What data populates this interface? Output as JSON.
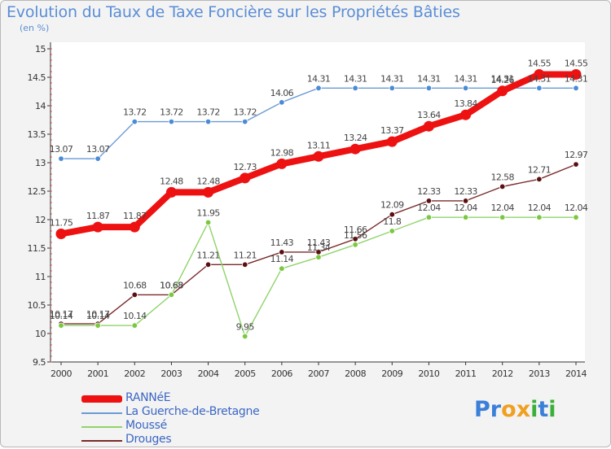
{
  "title": "Evolution du Taux de Taxe Foncière sur les Propriétés Bâties",
  "unit": "(en %)",
  "logo": {
    "text": "Proxiti",
    "letters": [
      "P",
      "r",
      "o",
      "x",
      "i",
      "t",
      "i"
    ],
    "colors": [
      "#3a7fd8",
      "#3a7fd8",
      "#f0a020",
      "#f0a020",
      "#3ab03a",
      "#3a7fd8",
      "#3ab03a"
    ]
  },
  "chart_data": {
    "type": "line",
    "title": "Evolution du Taux de Taxe Foncière sur les Propriétés Bâties",
    "ylabel": "(en %)",
    "xlabel": "",
    "ylim": [
      9.5,
      15
    ],
    "yticks": [
      9.5,
      10,
      10.5,
      11,
      11.5,
      12,
      12.5,
      13,
      13.5,
      14,
      14.5,
      15
    ],
    "ytick_labels": [
      "9.5",
      "10",
      "10.5",
      "11",
      "11.5",
      "12",
      "12.5",
      "13",
      "13.5",
      "14",
      "14.5",
      "15"
    ],
    "categories": [
      "2000",
      "2001",
      "2002",
      "2003",
      "2004",
      "2005",
      "2006",
      "2007",
      "2008",
      "2009",
      "2010",
      "2011",
      "2012",
      "2013",
      "2014"
    ],
    "series": [
      {
        "name": "Drouges",
        "color": "#7a2a2a",
        "dot": "#5a1010",
        "values": [
          10.17,
          10.17,
          10.68,
          10.68,
          11.21,
          11.21,
          11.43,
          11.43,
          11.66,
          12.09,
          12.33,
          12.33,
          12.58,
          12.71,
          12.97
        ],
        "labels": [
          "10.17",
          "10.17",
          "10.68",
          "10.68",
          "11.21",
          "11.21",
          "11.43",
          "11.43",
          "11.66",
          "12.09",
          "12.33",
          "12.33",
          "12.58",
          "12.71",
          "12.97"
        ]
      },
      {
        "name": "Moussé",
        "color": "#8fd46a",
        "dot": "#7ac840",
        "values": [
          10.14,
          10.14,
          10.14,
          10.68,
          11.95,
          9.95,
          11.14,
          11.34,
          11.56,
          11.8,
          12.04,
          12.04,
          12.04,
          12.04,
          12.04
        ],
        "labels": [
          "10.14",
          "10.14",
          "10.14",
          "10.68",
          "11.95",
          "9.95",
          "11.14",
          "11.34",
          "11.56",
          "11.8",
          "12.04",
          "12.04",
          "12.04",
          "12.04",
          "12.04"
        ]
      },
      {
        "name": "La Guerche-de-Bretagne",
        "color": "#6a9ad6",
        "dot": "#4a8ad6",
        "values": [
          13.07,
          13.07,
          13.72,
          13.72,
          13.72,
          13.72,
          14.06,
          14.31,
          14.31,
          14.31,
          14.31,
          14.31,
          14.31,
          14.31,
          14.31
        ],
        "labels": [
          "13.07",
          "13.07",
          "13.72",
          "13.72",
          "13.72",
          "13.72",
          "14.06",
          "14.31",
          "14.31",
          "14.31",
          "14.31",
          "14.31",
          "14.31",
          "14.31",
          "14.31"
        ]
      },
      {
        "name": "RANNéE",
        "color": "#ee1111",
        "dot": "#ee1111",
        "values": [
          11.75,
          11.87,
          11.87,
          12.48,
          12.48,
          12.73,
          12.98,
          13.11,
          13.24,
          13.37,
          13.64,
          13.84,
          14.26,
          14.55,
          14.55
        ],
        "labels": [
          "11.75",
          "11.87",
          "11.87",
          "12.48",
          "12.48",
          "12.73",
          "12.98",
          "13.11",
          "13.24",
          "13.37",
          "13.64",
          "13.84",
          "14.26",
          "14.55",
          "14.55"
        ]
      }
    ],
    "legend": {
      "placement": "bottom-left",
      "entries": [
        "RANNéE",
        "La Guerche-de-Bretagne",
        "Moussé",
        "Drouges"
      ]
    },
    "grid": false
  }
}
